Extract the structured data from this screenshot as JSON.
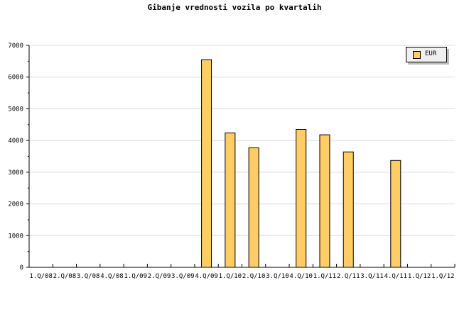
{
  "chart_data": {
    "type": "bar",
    "title": "Gibanje vrednosti vozila po kvartalih",
    "xlabel": "",
    "ylabel": "",
    "categories": [
      "1.Q/08",
      "2.Q/08",
      "3.Q/08",
      "4.Q/08",
      "1.Q/09",
      "2.Q/09",
      "3.Q/09",
      "4.Q/09",
      "1.Q/10",
      "2.Q/10",
      "3.Q/10",
      "4.Q/10",
      "1.Q/11",
      "2.Q/11",
      "3.Q/11",
      "4.Q/11",
      "1.Q/12",
      "1.Q/12"
    ],
    "series": [
      {
        "name": "EUR",
        "color": "#ffcc66",
        "values": [
          0,
          0,
          0,
          0,
          0,
          0,
          0,
          6550,
          4240,
          3770,
          0,
          4350,
          4180,
          3640,
          0,
          3370,
          0,
          0
        ]
      }
    ],
    "ylim": [
      0,
      7000
    ],
    "yticks": [
      0,
      1000,
      2000,
      3000,
      4000,
      5000,
      6000,
      7000
    ],
    "grid": true,
    "legend": "top-right"
  }
}
